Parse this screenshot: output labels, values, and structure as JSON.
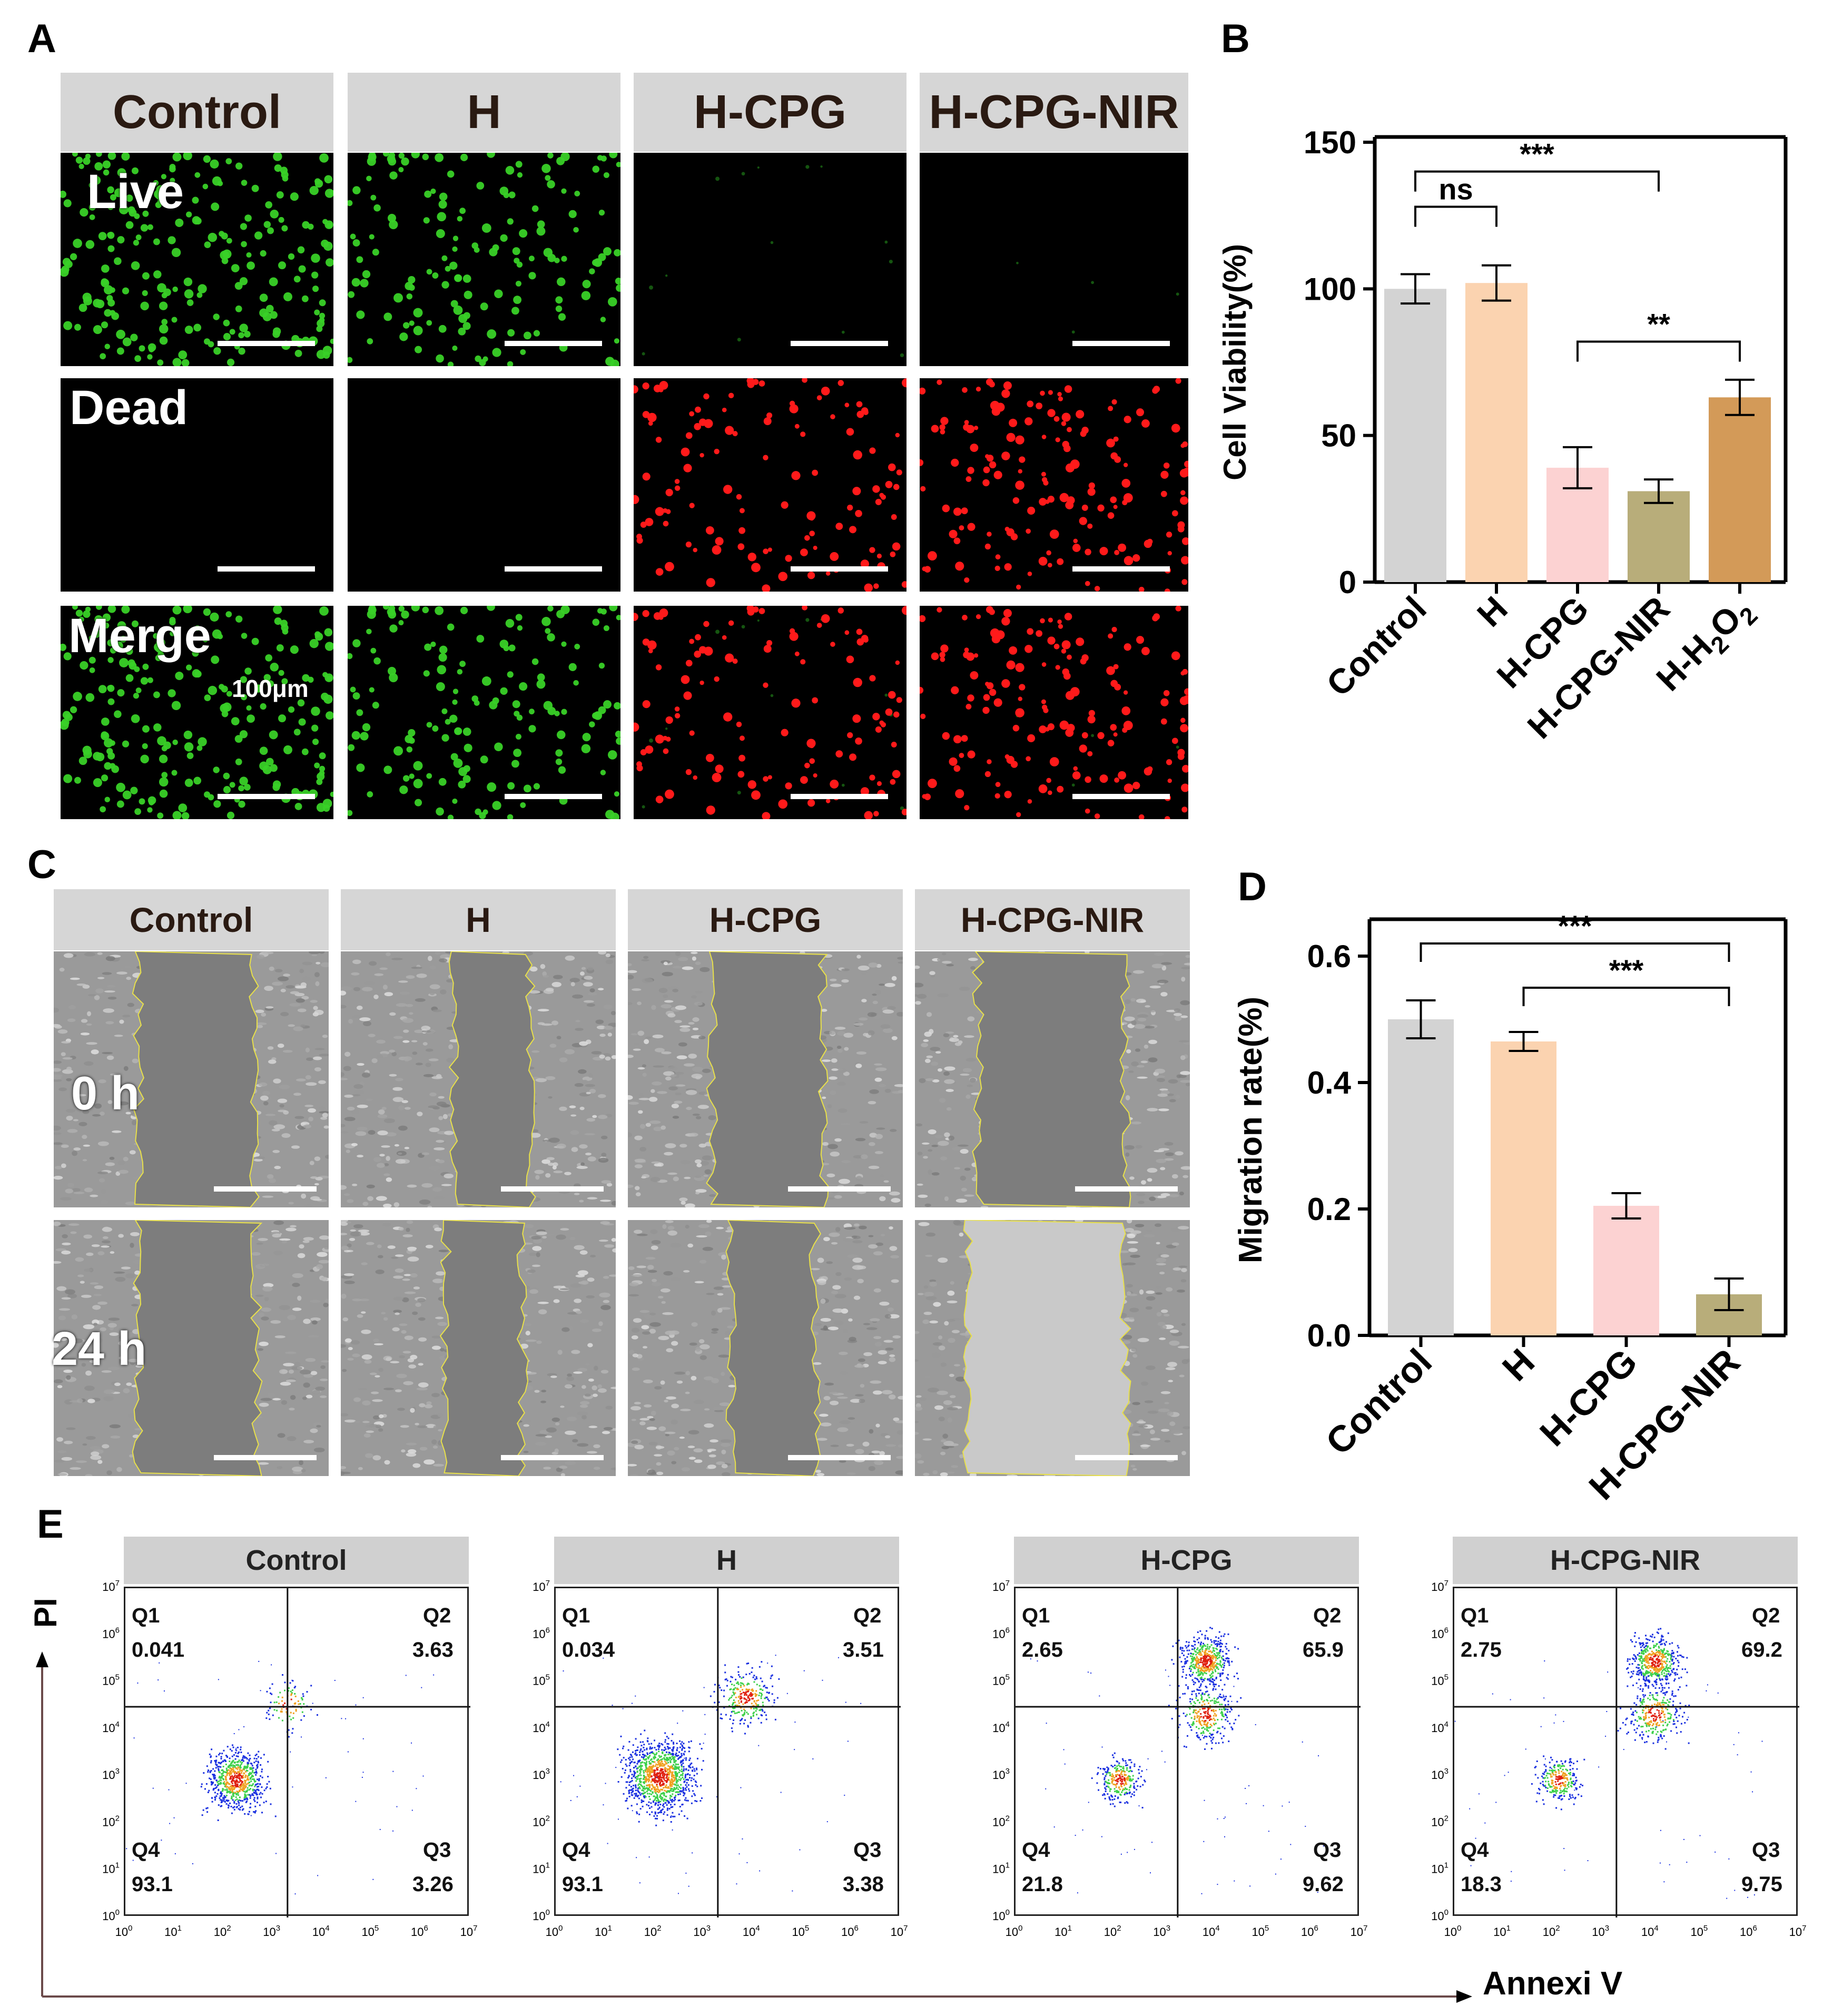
{
  "panels": {
    "a": "A",
    "b": "B",
    "c": "C",
    "d": "D",
    "e": "E"
  },
  "panel_a": {
    "columns": [
      "Control",
      "H",
      "H-CPG",
      "H-CPG-NIR"
    ],
    "rows": [
      "Live",
      "Dead",
      "Merge"
    ],
    "scale": "100μm",
    "colors": {
      "live": "#39d127",
      "dead": "#ff1a1a"
    }
  },
  "panel_c": {
    "columns": [
      "Control",
      "H",
      "H-CPG",
      "H-CPG-NIR"
    ],
    "rows": [
      "0 h",
      "24 h"
    ]
  },
  "chart_data": [
    {
      "id": "B",
      "type": "bar",
      "categories": [
        "Control",
        "H",
        "H-CPG",
        "H-CPG-NIR",
        "H-H2O2"
      ],
      "category_labels": [
        {
          "main": "Control"
        },
        {
          "main": "H"
        },
        {
          "main": "H-CPG"
        },
        {
          "main": "H-CPG-NIR"
        },
        {
          "main": "H-H",
          "sub": "2",
          "tail": "O",
          "sub2": "2"
        }
      ],
      "values": [
        100,
        102,
        39,
        31,
        63
      ],
      "errors": [
        5,
        6,
        7,
        4,
        6
      ],
      "colors": [
        "#d3d3d3",
        "#fbd3b0",
        "#fcd2d2",
        "#b8ad7a",
        "#d39a58"
      ],
      "ylabel": "Cell Viability(%)",
      "ylim": [
        0,
        150
      ],
      "yticks": [
        0,
        50,
        100,
        150
      ],
      "significance": [
        {
          "from": 0,
          "to": 1,
          "label": "ns",
          "level": 128
        },
        {
          "from": 0,
          "to": 3,
          "label": "***",
          "level": 140
        },
        {
          "from": 2,
          "to": 4,
          "label": "**",
          "level": 82
        }
      ]
    },
    {
      "id": "D",
      "type": "bar",
      "categories": [
        "Control",
        "H",
        "H-CPG",
        "H-CPG-NIR"
      ],
      "values": [
        0.5,
        0.465,
        0.205,
        0.065
      ],
      "errors": [
        0.03,
        0.015,
        0.02,
        0.025
      ],
      "colors": [
        "#d3d3d3",
        "#fbd3b0",
        "#fcd2d2",
        "#b8ad7a"
      ],
      "ylabel": "Migration rate(%)",
      "ylim": [
        0,
        0.65
      ],
      "yticks": [
        "0.0",
        "0.2",
        "0.4",
        "0.6"
      ],
      "significance": [
        {
          "from": 0,
          "to": 3,
          "label": "***",
          "level": 0.62
        },
        {
          "from": 1,
          "to": 3,
          "label": "***",
          "level": 0.55
        }
      ]
    },
    {
      "id": "E",
      "type": "scatter",
      "xlabel": "Annexi V",
      "ylabel": "PI",
      "tick_labels": [
        "10",
        "10",
        "10",
        "10",
        "10",
        "10",
        "10",
        "10"
      ],
      "tick_exponents": [
        "0",
        "1",
        "2",
        "3",
        "4",
        "5",
        "6",
        "7"
      ],
      "quadrant_names": [
        "Q1",
        "Q2",
        "Q3",
        "Q4"
      ],
      "plots": [
        {
          "title": "Control",
          "Q1": "0.041",
          "Q2": "3.63",
          "Q3": "3.26",
          "Q4": "93.1"
        },
        {
          "title": "H",
          "Q1": "0.034",
          "Q2": "3.51",
          "Q3": "3.38",
          "Q4": "93.1"
        },
        {
          "title": "H-CPG",
          "Q1": "2.65",
          "Q2": "65.9",
          "Q3": "9.62",
          "Q4": "21.8"
        },
        {
          "title": "H-CPG-NIR",
          "Q1": "2.75",
          "Q2": "69.2",
          "Q3": "9.75",
          "Q4": "18.3"
        }
      ]
    }
  ]
}
